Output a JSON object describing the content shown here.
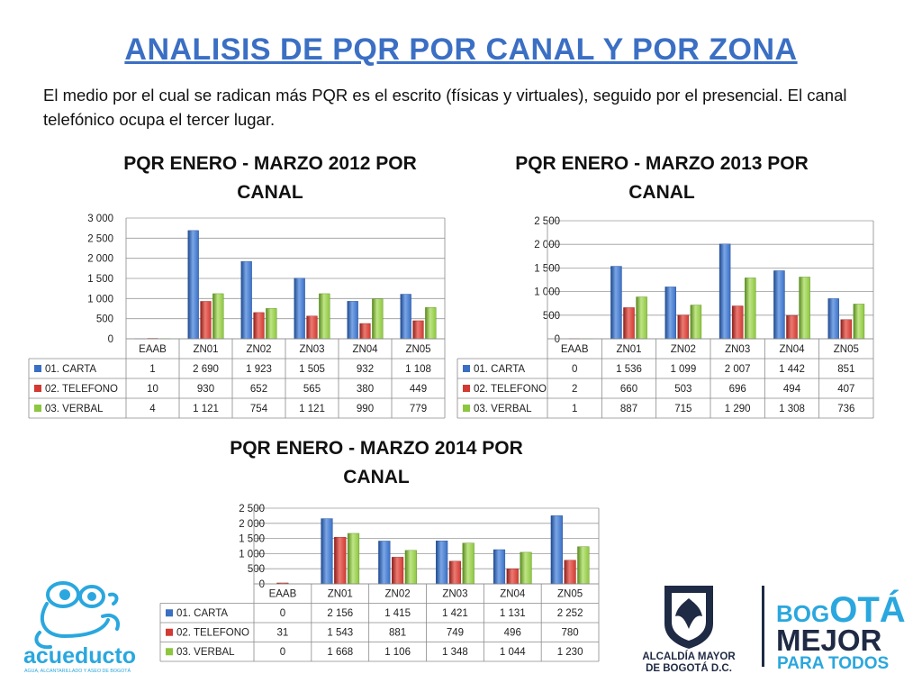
{
  "title": "ANALISIS DE PQR POR CANAL Y POR ZONA",
  "intro": "El medio por el cual se radican más PQR es el escrito (físicas y virtuales), seguido por el presencial.  El canal telefónico ocupa el tercer lugar.",
  "colors": {
    "carta": "#3a6fc4",
    "telefono": "#d23a32",
    "verbal": "#8dc63f",
    "title": "#3b6fc4"
  },
  "chart_data": [
    {
      "type": "bar",
      "title": "PQR ENERO - MARZO 2012 POR CANAL",
      "categories": [
        "EAAB",
        "ZN01",
        "ZN02",
        "ZN03",
        "ZN04",
        "ZN05"
      ],
      "ylim": [
        0,
        3000
      ],
      "yticks": [
        0,
        500,
        1000,
        1500,
        2000,
        2500,
        3000
      ],
      "ytick_labels": [
        "0",
        "500",
        "1 000",
        "1 500",
        "2 000",
        "2 500",
        "3 000"
      ],
      "grid": true,
      "legend": "data-table",
      "series": [
        {
          "name": "01. CARTA",
          "values": [
            1,
            2690,
            1923,
            1505,
            932,
            1108
          ],
          "labels": [
            "1",
            "2 690",
            "1 923",
            "1 505",
            "932",
            "1 108"
          ]
        },
        {
          "name": "02. TELEFONO",
          "values": [
            10,
            930,
            652,
            565,
            380,
            449
          ],
          "labels": [
            "10",
            "930",
            "652",
            "565",
            "380",
            "449"
          ]
        },
        {
          "name": "03. VERBAL",
          "values": [
            4,
            1121,
            754,
            1121,
            990,
            779
          ],
          "labels": [
            "4",
            "1 121",
            "754",
            "1 121",
            "990",
            "779"
          ]
        }
      ]
    },
    {
      "type": "bar",
      "title": "PQR ENERO - MARZO 2013 POR CANAL",
      "categories": [
        "EAAB",
        "ZN01",
        "ZN02",
        "ZN03",
        "ZN04",
        "ZN05"
      ],
      "ylim": [
        0,
        2500
      ],
      "yticks": [
        0,
        500,
        1000,
        1500,
        2000,
        2500
      ],
      "ytick_labels": [
        "0",
        "500",
        "1 000",
        "1 500",
        "2 000",
        "2 500"
      ],
      "grid": true,
      "legend": "data-table",
      "series": [
        {
          "name": "01. CARTA",
          "values": [
            0,
            1536,
            1099,
            2007,
            1442,
            851
          ],
          "labels": [
            "0",
            "1 536",
            "1 099",
            "2 007",
            "1 442",
            "851"
          ]
        },
        {
          "name": "02. TELEFONO",
          "values": [
            2,
            660,
            503,
            696,
            494,
            407
          ],
          "labels": [
            "2",
            "660",
            "503",
            "696",
            "494",
            "407"
          ]
        },
        {
          "name": "03. VERBAL",
          "values": [
            1,
            887,
            715,
            1290,
            1308,
            736
          ],
          "labels": [
            "1",
            "887",
            "715",
            "1 290",
            "1 308",
            "736"
          ]
        }
      ]
    },
    {
      "type": "bar",
      "title": "PQR ENERO - MARZO 2014 POR CANAL",
      "categories": [
        "EAAB",
        "ZN01",
        "ZN02",
        "ZN03",
        "ZN04",
        "ZN05"
      ],
      "ylim": [
        0,
        2500
      ],
      "yticks": [
        0,
        500,
        1000,
        1500,
        2000,
        2500
      ],
      "ytick_labels": [
        "0",
        "500",
        "1 000",
        "1 500",
        "2 000",
        "2 500"
      ],
      "grid": true,
      "legend": "data-table",
      "series": [
        {
          "name": "01. CARTA",
          "values": [
            0,
            2156,
            1415,
            1421,
            1131,
            2252
          ],
          "labels": [
            "0",
            "2 156",
            "1 415",
            "1 421",
            "1 131",
            "2 252"
          ]
        },
        {
          "name": "02. TELEFONO",
          "values": [
            31,
            1543,
            881,
            749,
            496,
            780
          ],
          "labels": [
            "31",
            "1 543",
            "881",
            "749",
            "496",
            "780"
          ]
        },
        {
          "name": "03. VERBAL",
          "values": [
            0,
            1668,
            1106,
            1348,
            1044,
            1230
          ],
          "labels": [
            "0",
            "1 668",
            "1 106",
            "1 348",
            "1 044",
            "1 230"
          ]
        }
      ]
    }
  ],
  "logos": {
    "acueducto": {
      "name": "acueducto",
      "tagline": "AGUA, ALCANTARILLADO Y ASEO DE BOGOTÁ"
    },
    "alcaldia": {
      "line1": "ALCALDÍA MAYOR",
      "line2": "DE BOGOTÁ D.C."
    },
    "bogota": {
      "word1a": "BOG",
      "word1b": "OTÁ",
      "word2": "MEJOR",
      "word3": "PARA TODOS"
    }
  }
}
